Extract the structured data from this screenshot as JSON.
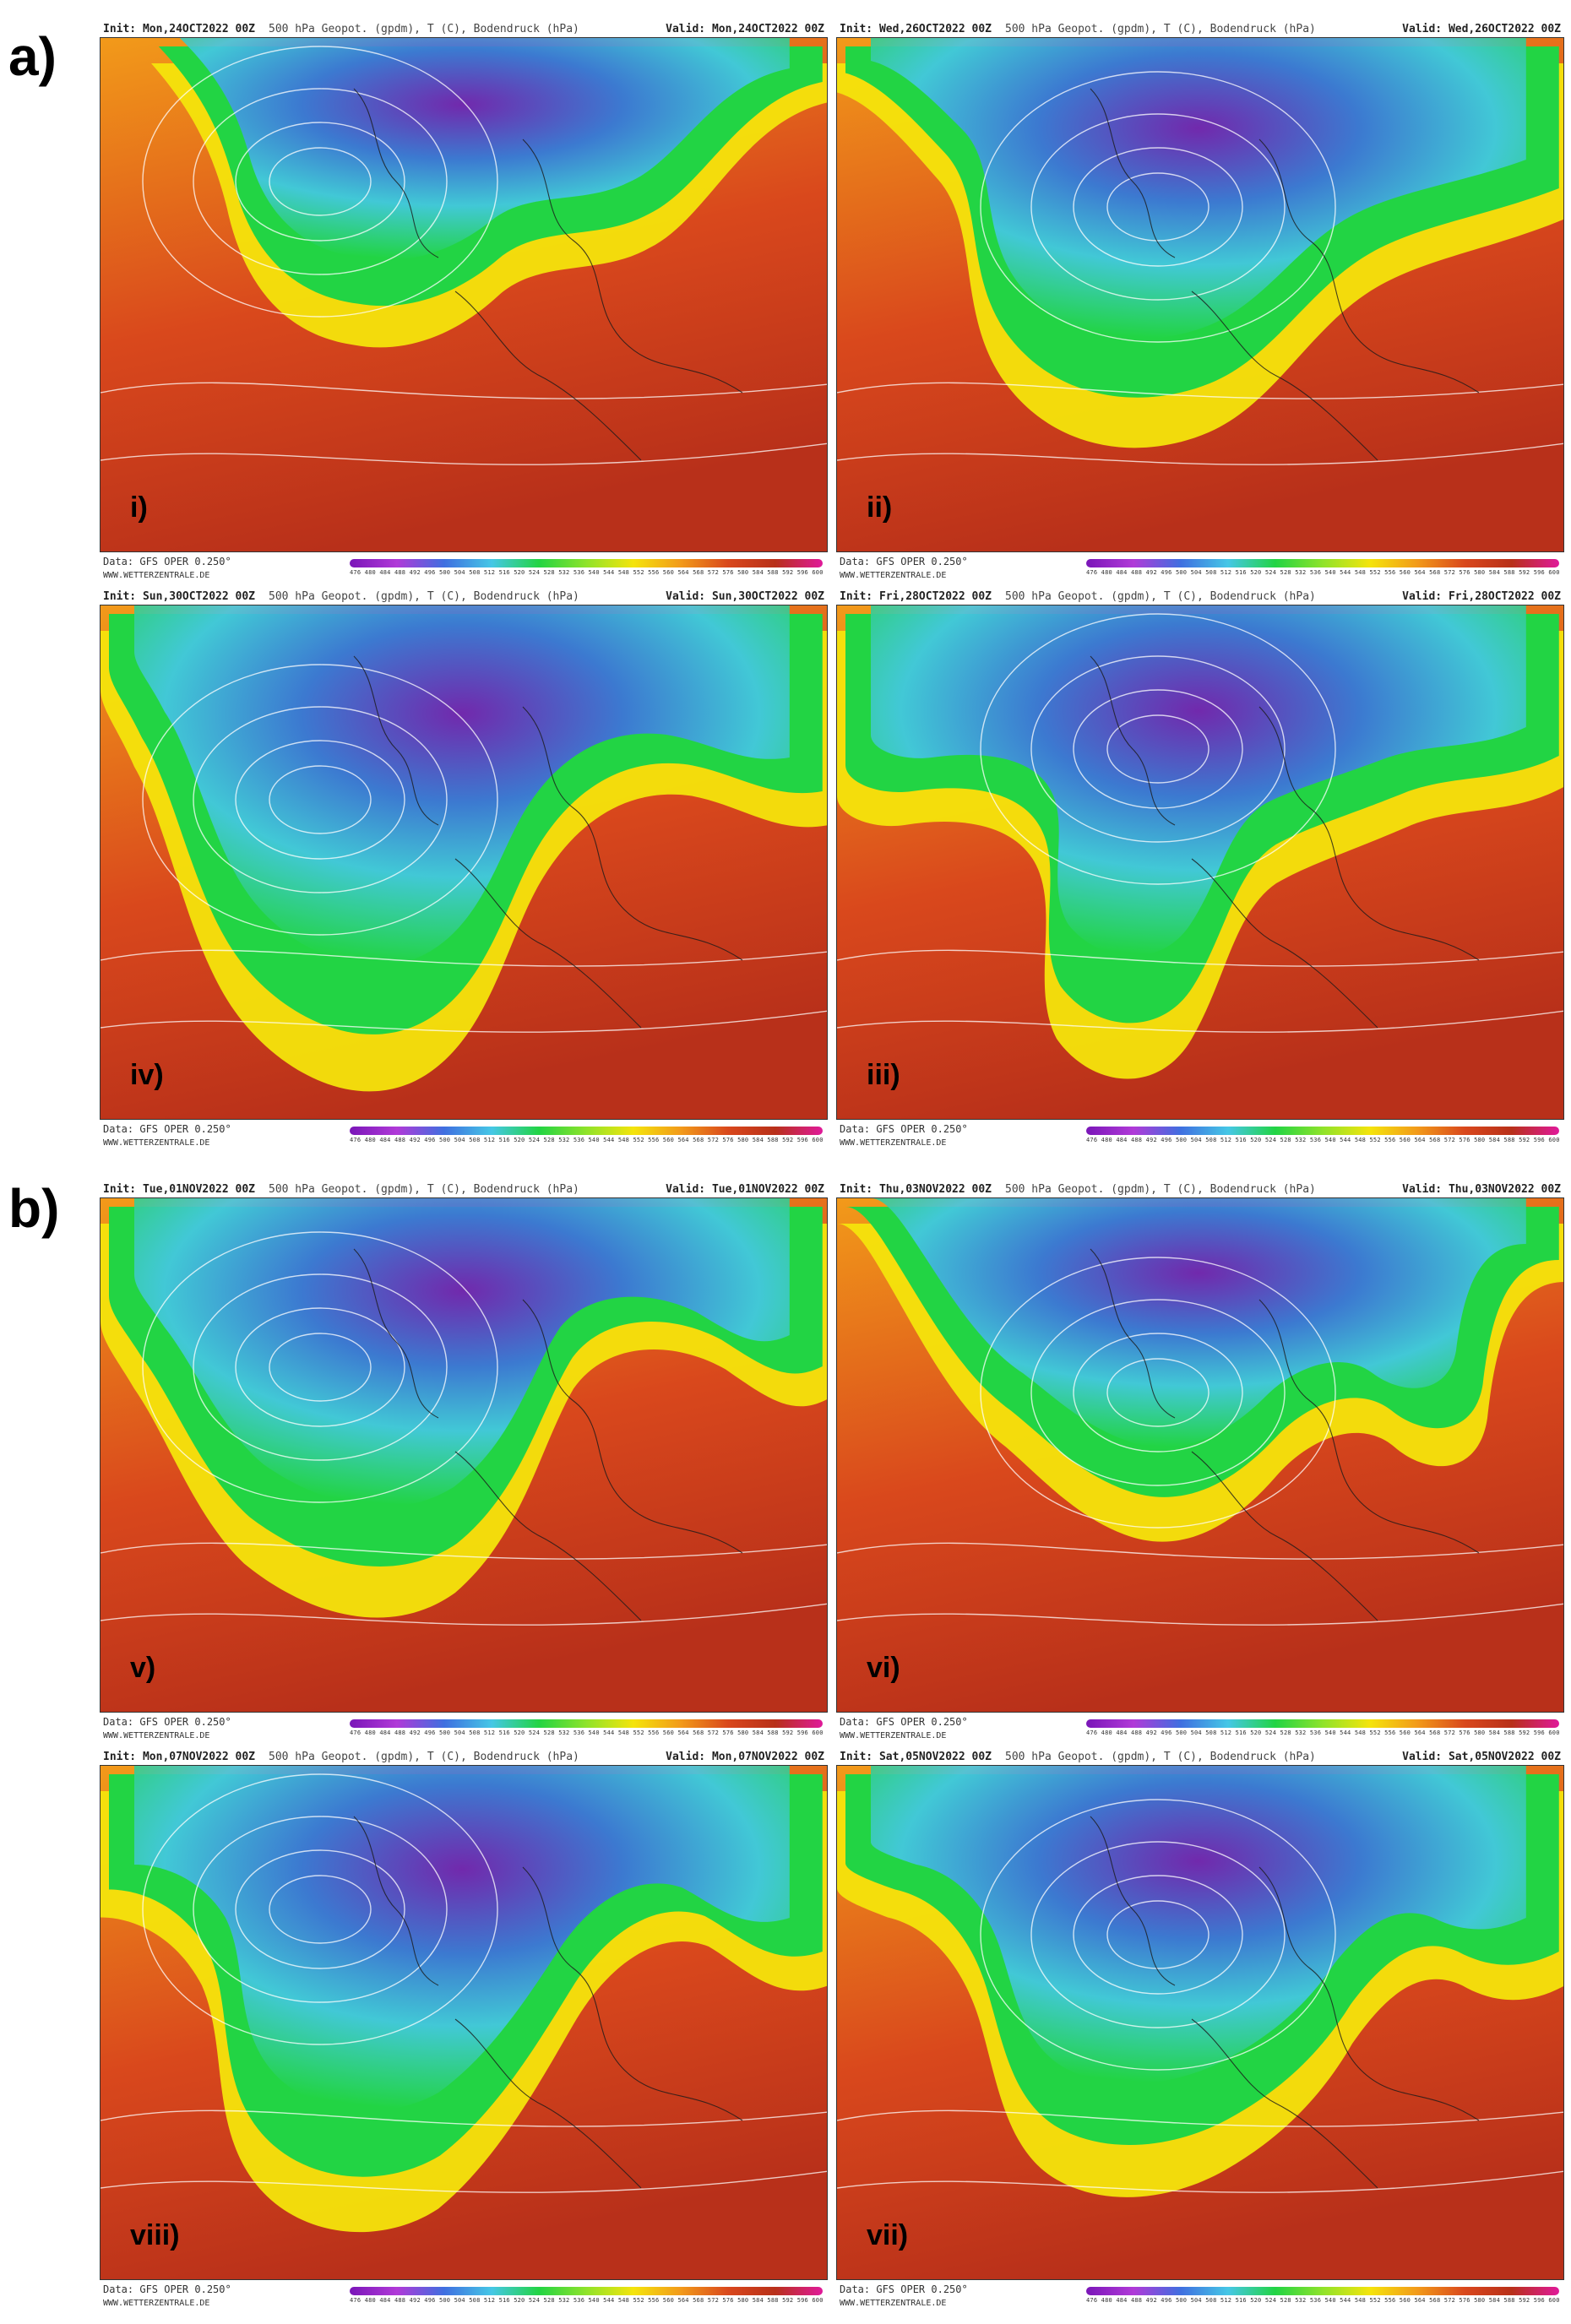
{
  "sections": [
    {
      "label": "a)"
    },
    {
      "label": "b)"
    }
  ],
  "common": {
    "title": "500 hPa Geopot. (gpdm), T (C), Bodendruck (hPa)",
    "data_source": "Data: GFS OPER 0.250°",
    "site": "WWW.WETTERZENTRALE.DE",
    "colorbar_ticks": "476 480 484 488 492 496 500 504 508 512 516 520 524 528 532 536 540 544 548 552 556 560 564 568 572 576 580 584 588 592 596 600",
    "colors": {
      "violet": "#7a16b8",
      "blue": "#3f6fe0",
      "cyan": "#45c7e6",
      "green": "#22d444",
      "yellow": "#f4e40c",
      "orange": "#f29a1a",
      "red": "#d9481c",
      "darkred": "#b8301a"
    }
  },
  "panels": [
    {
      "id": "i",
      "roman": "i)",
      "init": "Init: Mon,24OCT2022 00Z",
      "valid": "Valid: Mon,24OCT2022 00Z"
    },
    {
      "id": "ii",
      "roman": "ii)",
      "init": "Init: Wed,26OCT2022 00Z",
      "valid": "Valid: Wed,26OCT2022 00Z"
    },
    {
      "id": "iv",
      "roman": "iv)",
      "init": "Init: Sun,30OCT2022 00Z",
      "valid": "Valid: Sun,30OCT2022 00Z"
    },
    {
      "id": "iii",
      "roman": "iii)",
      "init": "Init: Fri,28OCT2022 00Z",
      "valid": "Valid: Fri,28OCT2022 00Z"
    },
    {
      "id": "v",
      "roman": "v)",
      "init": "Init: Tue,01NOV2022 00Z",
      "valid": "Valid: Tue,01NOV2022 00Z"
    },
    {
      "id": "vi",
      "roman": "vi)",
      "init": "Init: Thu,03NOV2022 00Z",
      "valid": "Valid: Thu,03NOV2022 00Z"
    },
    {
      "id": "viii",
      "roman": "viii)",
      "init": "Init: Mon,07NOV2022 00Z",
      "valid": "Valid: Mon,07NOV2022 00Z"
    },
    {
      "id": "vii",
      "roman": "vii)",
      "init": "Init: Sat,05NOV2022 00Z",
      "valid": "Valid: Sat,05NOV2022 00Z"
    }
  ]
}
